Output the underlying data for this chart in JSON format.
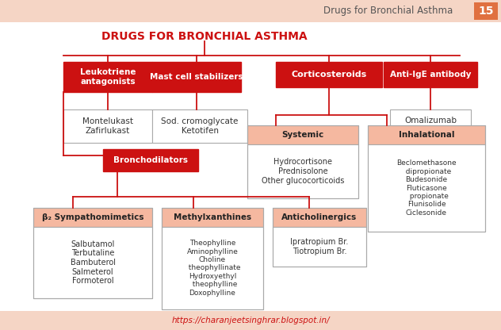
{
  "title": "DRUGS FOR BRONCHIAL ASTHMA",
  "header_text": "Drugs for Bronchial Asthma",
  "page_num": "15",
  "bg_color": "#ffffff",
  "header_bg": "#f5d5c5",
  "red_color": "#cc1111",
  "light_salmon": "#f5b8a0",
  "white_box": "#ffffff",
  "footer_text": "https://charanjeetsinghrar.blogspot.in/",
  "footer_color": "#cc1111"
}
